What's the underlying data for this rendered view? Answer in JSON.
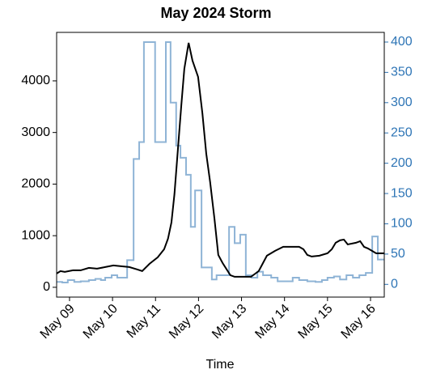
{
  "chart_data": {
    "type": "line",
    "title": "May 2024 Storm",
    "x_label": "Time",
    "xlim": [
      8.7,
      16.32
    ],
    "xticks": [
      {
        "value": 9,
        "label": "May 09"
      },
      {
        "value": 10,
        "label": "May 10"
      },
      {
        "value": 11,
        "label": "May 11"
      },
      {
        "value": 12,
        "label": "May 12"
      },
      {
        "value": 13,
        "label": "May 13"
      },
      {
        "value": 14,
        "label": "May 14"
      },
      {
        "value": 15,
        "label": "May 15"
      },
      {
        "value": 16,
        "label": "May 16"
      }
    ],
    "ylim": [
      -190,
      4940
    ],
    "yticks": [
      0,
      1000,
      2000,
      3000,
      4000
    ],
    "y2lim": [
      -21,
      416
    ],
    "y2ticks": [
      0,
      50,
      100,
      150,
      200,
      250,
      300,
      350,
      400
    ],
    "y2_color": "#2e75b6",
    "series": [
      {
        "color": "#000000",
        "step": false,
        "x": [
          8.7,
          8.79,
          8.89,
          9.08,
          9.26,
          9.45,
          9.64,
          9.83,
          10.02,
          10.2,
          10.39,
          10.58,
          10.69,
          10.86,
          11.05,
          11.2,
          11.29,
          11.37,
          11.44,
          11.52,
          11.6,
          11.67,
          11.77,
          11.86,
          11.99,
          12.09,
          12.18,
          12.27,
          12.37,
          12.46,
          12.56,
          12.74,
          12.84,
          13.03,
          13.22,
          13.4,
          13.5,
          13.59,
          13.78,
          13.97,
          14.16,
          14.34,
          14.44,
          14.53,
          14.63,
          14.81,
          15.0,
          15.1,
          15.19,
          15.29,
          15.38,
          15.47,
          15.66,
          15.76,
          15.85,
          15.94,
          16.13,
          16.32
        ],
        "values": [
          267,
          314,
          298,
          329,
          329,
          376,
          361,
          392,
          424,
          408,
          392,
          345,
          314,
          455,
          580,
          737,
          941,
          1255,
          1804,
          2667,
          3529,
          4235,
          4737,
          4392,
          4078,
          3373,
          2588,
          2039,
          1333,
          627,
          471,
          235,
          204,
          204,
          204,
          314,
          471,
          612,
          706,
          784,
          784,
          784,
          737,
          627,
          596,
          612,
          659,
          737,
          863,
          910,
          925,
          831,
          863,
          894,
          784,
          753,
          659,
          659
        ]
      },
      {
        "color": "#8fb4d6",
        "step": true,
        "axis": "y2",
        "x": [
          8.7,
          8.83,
          8.96,
          9.11,
          9.26,
          9.45,
          9.6,
          9.73,
          9.83,
          9.98,
          10.11,
          10.34,
          10.49,
          10.62,
          10.73,
          10.99,
          11.24,
          11.35,
          11.48,
          11.58,
          11.71,
          11.82,
          11.92,
          12.07,
          12.31,
          12.42,
          12.71,
          12.84,
          12.97,
          13.1,
          13.23,
          13.37,
          13.5,
          13.69,
          13.84,
          14.01,
          14.19,
          14.34,
          14.53,
          14.72,
          14.87,
          15.0,
          15.15,
          15.29,
          15.44,
          15.59,
          15.74,
          15.89,
          16.04,
          16.17
        ],
        "values": [
          4,
          3,
          7,
          4,
          5,
          7,
          9,
          7,
          11,
          15,
          11,
          40,
          207,
          235,
          400,
          235,
          400,
          300,
          229,
          209,
          181,
          95,
          155,
          28,
          8,
          15,
          95,
          68,
          82,
          15,
          11,
          21,
          15,
          11,
          5,
          5,
          11,
          7,
          5,
          4,
          7,
          11,
          13,
          8,
          15,
          11,
          15,
          19,
          79,
          41
        ]
      }
    ]
  }
}
